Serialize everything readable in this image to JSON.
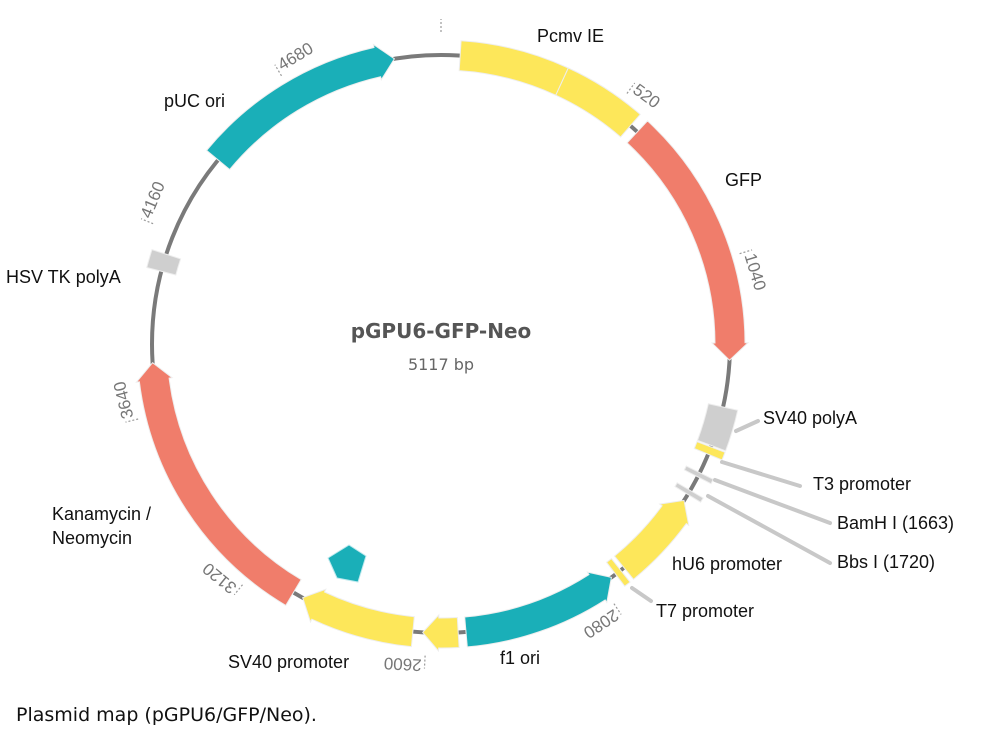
{
  "plasmid": {
    "name": "pGPU6-GFP-Neo",
    "size_label": "5117 bp",
    "length_bp": 5117,
    "backbone_color": "#7a7a7a",
    "tick_labels": [
      0,
      520,
      1040,
      2080,
      2600,
      3120,
      3640,
      4160,
      4680
    ],
    "features": [
      {
        "name": "Pcmv IE",
        "start": 54,
        "end": 352,
        "direction": "none",
        "color": "#fde75a"
      },
      {
        "name": "Pcmv IE",
        "start": 352,
        "end": 582,
        "direction": "none",
        "color": "#fde75a"
      },
      {
        "name": "GFP",
        "start": 608,
        "end": 1325,
        "direction": "forward",
        "color": "#f07d6b"
      },
      {
        "name": "SV40 polyA",
        "start": 1458,
        "end": 1572,
        "direction": "none",
        "color": "#cfcfcf"
      },
      {
        "name": "T3 promoter",
        "start": 1576,
        "end": 1598,
        "direction": "none",
        "color": "#fde75a"
      },
      {
        "name": "BamH I (1663)",
        "start": 1655,
        "end": 1668,
        "direction": "none",
        "color": "#cfcfcf"
      },
      {
        "name": "Bbs I (1720)",
        "start": 1712,
        "end": 1725,
        "direction": "none",
        "color": "#cfcfcf"
      },
      {
        "name": "hU6 promoter",
        "start": 1745,
        "end": 2000,
        "direction": "reverse",
        "color": "#fde75a"
      },
      {
        "name": "T7 promoter",
        "start": 2012,
        "end": 2030,
        "direction": "none",
        "color": "#fde75a"
      },
      {
        "name": "f1 ori",
        "start": 2045,
        "end": 2488,
        "direction": "reverse",
        "color": "#1aafb8"
      },
      {
        "name": "",
        "start": 2510,
        "end": 2610,
        "direction": "forward",
        "color": "#fde75a"
      },
      {
        "name": "SV40 promoter",
        "start": 2638,
        "end": 2965,
        "direction": "forward",
        "color": "#fde75a"
      },
      {
        "name": "Kanamycin / Neomycin",
        "start": 2995,
        "end": 3785,
        "direction": "forward",
        "color": "#f07d6b"
      },
      {
        "name": "HSV TK polyA",
        "start": 4045,
        "end": 4095,
        "direction": "none",
        "color": "#cfcfcf"
      },
      {
        "name": "pUC ori",
        "start": 4400,
        "end": 4985,
        "direction": "forward",
        "color": "#1aafb8"
      }
    ],
    "labels": {
      "pcmv": "Pcmv IE",
      "gfp": "GFP",
      "sv40_polya": "SV40 polyA",
      "t3": "T3 promoter",
      "bamhi": "BamH I (1663)",
      "bbsi": "Bbs I (1720)",
      "hu6": "hU6 promoter",
      "t7": "T7 promoter",
      "f1": "f1 ori",
      "sv40_promoter": "SV40 promoter",
      "kan_line1": "Kanamycin /",
      "kan_line2": "Neomycin",
      "hsv": "HSV TK polyA",
      "puc": "pUC ori"
    }
  },
  "caption": "Plasmid map (pGPU6/GFP/Neo)."
}
